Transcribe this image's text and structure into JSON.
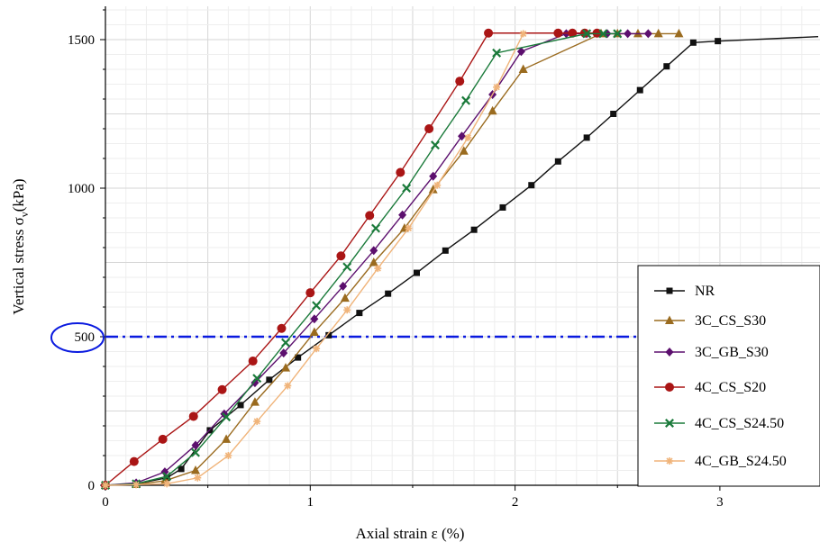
{
  "chart_data": {
    "type": "line",
    "xlabel": "Axial strain ε (%)",
    "ylabel_main": "Vertical stress σ",
    "ylabel_sub": "v",
    "ylabel_unit": "(kPa)",
    "xlim": [
      0,
      3.48
    ],
    "ylim": [
      0,
      1600
    ],
    "x_ticks": [
      0,
      1,
      2,
      3
    ],
    "y_ticks": [
      0,
      500,
      1000,
      1500
    ],
    "grid": true,
    "legend_position": "bottom-right",
    "reference_line": {
      "y": 500,
      "color": "#0a1adf",
      "style": "dash-dot",
      "highlight_label": "500"
    },
    "series": [
      {
        "name": "NR",
        "color": "#111111",
        "marker": "square",
        "x": [
          0,
          0.15,
          0.3,
          0.37,
          0.51,
          0.66,
          0.8,
          0.94,
          1.09,
          1.24,
          1.38,
          1.52,
          1.66,
          1.8,
          1.94,
          2.08,
          2.21,
          2.35,
          2.48,
          2.61,
          2.74,
          2.87,
          2.99,
          3.48
        ],
        "y": [
          0,
          5,
          25,
          55,
          185,
          270,
          355,
          430,
          505,
          580,
          645,
          715,
          790,
          860,
          935,
          1010,
          1090,
          1170,
          1250,
          1330,
          1410,
          1490,
          1495,
          1510
        ]
      },
      {
        "name": "3C_CS_S30",
        "color": "#9a6b1f",
        "marker": "triangle",
        "x": [
          0,
          0.15,
          0.29,
          0.44,
          0.59,
          0.73,
          0.88,
          1.02,
          1.17,
          1.31,
          1.46,
          1.6,
          1.75,
          1.89,
          2.04,
          2.42,
          2.5,
          2.6,
          2.7,
          2.8
        ],
        "y": [
          0,
          3,
          15,
          50,
          155,
          280,
          395,
          515,
          630,
          750,
          865,
          995,
          1125,
          1260,
          1400,
          1520,
          1520,
          1520,
          1520,
          1520
        ]
      },
      {
        "name": "3C_GB_S30",
        "color": "#5c0f6e",
        "marker": "diamond",
        "x": [
          0,
          0.15,
          0.29,
          0.44,
          0.58,
          0.73,
          0.87,
          1.02,
          1.16,
          1.31,
          1.45,
          1.6,
          1.74,
          1.89,
          2.03,
          2.25,
          2.35,
          2.45,
          2.55,
          2.65
        ],
        "y": [
          0,
          8,
          45,
          135,
          240,
          345,
          445,
          560,
          670,
          790,
          910,
          1040,
          1175,
          1315,
          1460,
          1520,
          1520,
          1520,
          1520,
          1520
        ]
      },
      {
        "name": "4C_CS_S20",
        "color": "#aa1515",
        "marker": "circle",
        "x": [
          0,
          0.14,
          0.28,
          0.43,
          0.57,
          0.72,
          0.86,
          1.0,
          1.15,
          1.29,
          1.44,
          1.58,
          1.73,
          1.87,
          2.21,
          2.28,
          2.34,
          2.4
        ],
        "y": [
          0,
          80,
          155,
          232,
          322,
          418,
          528,
          648,
          772,
          908,
          1053,
          1200,
          1360,
          1522,
          1522,
          1522,
          1522,
          1522
        ]
      },
      {
        "name": "4C_CS_S24.50",
        "color": "#1a7a3a",
        "marker": "x",
        "x": [
          0,
          0.15,
          0.3,
          0.44,
          0.59,
          0.74,
          0.88,
          1.03,
          1.18,
          1.32,
          1.47,
          1.61,
          1.76,
          1.91,
          2.35,
          2.43,
          2.5
        ],
        "y": [
          0,
          5,
          30,
          110,
          230,
          360,
          480,
          605,
          735,
          865,
          1000,
          1145,
          1295,
          1455,
          1520,
          1520,
          1520
        ]
      },
      {
        "name": "4C_GB_S24.50",
        "color": "#f0b47a",
        "marker": "star",
        "x": [
          0,
          0.15,
          0.3,
          0.45,
          0.6,
          0.74,
          0.89,
          1.03,
          1.18,
          1.33,
          1.48,
          1.62,
          1.77,
          1.91,
          2.04
        ],
        "y": [
          0,
          2,
          5,
          25,
          100,
          215,
          335,
          460,
          590,
          730,
          865,
          1010,
          1170,
          1340,
          1520
        ]
      }
    ]
  }
}
